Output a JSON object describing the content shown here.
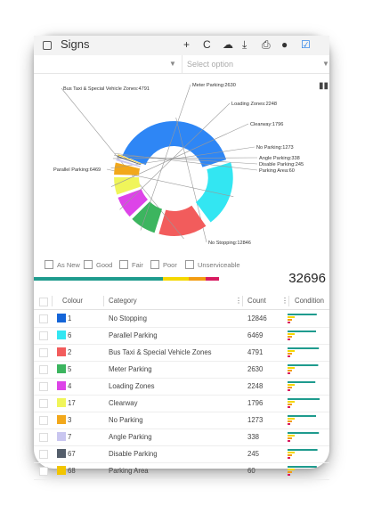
{
  "app": {
    "title": "Signs",
    "toolbar": [
      "plus-icon",
      "refresh-icon",
      "cloud-upload-icon",
      "download-icon",
      "print-icon",
      "circle-icon",
      "checkbox-icon"
    ],
    "toolbar_glyphs": [
      "+",
      "C",
      "☁",
      "⤓",
      "⎙",
      "●",
      "☑"
    ]
  },
  "filters": {
    "first_select_value": "",
    "second_select_placeholder": "Select option"
  },
  "chart_data": {
    "type": "pie",
    "donut": true,
    "categories": [
      "No Stopping",
      "Parallel Parking",
      "Bus Taxi & Special Vehicle Zones",
      "Meter Parking",
      "Loading Zones",
      "Clearway",
      "No Parking",
      "Angle Parking",
      "Disable Parking",
      "Parking Area"
    ],
    "values": [
      12846,
      6469,
      4791,
      2630,
      2248,
      1796,
      1273,
      338,
      245,
      60
    ],
    "labels": [
      "No Stopping:12846",
      "Parallel Parking:6469",
      "Bus Taxi & Special Vehicle Zones:4791",
      "Meter Parking:2630",
      "Loading Zones:2248",
      "Clearway:1796",
      "No Parking:1273",
      "Angle Parking:338",
      "Disable Parking:245",
      "Parking Area:60"
    ],
    "colors": [
      "#2e86f5",
      "#33e6f2",
      "#f25c5c",
      "#3cb55f",
      "#dd44e8",
      "#f0f55a",
      "#f2a81b",
      "#c9c6f0",
      "#545e6b",
      "#f2c500"
    ]
  },
  "conditions": [
    "As New",
    "Good",
    "Fair",
    "Poor",
    "Unserviceable"
  ],
  "total": "32696",
  "progress": {
    "segments": [
      {
        "fraction": 0.6,
        "color": "#1f9b8e"
      },
      {
        "fraction": 0.12,
        "color": "#f5d800"
      },
      {
        "fraction": 0.08,
        "color": "#f39c12"
      },
      {
        "fraction": 0.06,
        "color": "#d81b60"
      }
    ]
  },
  "table": {
    "headers": {
      "colour": "Colour",
      "category": "Category",
      "count": "Count",
      "condition": "Condition"
    },
    "rows": [
      {
        "color": "#1565d8",
        "num": "1",
        "category": "No Stopping",
        "count": "12846"
      },
      {
        "color": "#33e6f2",
        "num": "6",
        "category": "Parallel Parking",
        "count": "6469"
      },
      {
        "color": "#f25c5c",
        "num": "2",
        "category": "Bus Taxi & Special Vehicle Zones",
        "count": "4791"
      },
      {
        "color": "#3cb55f",
        "num": "5",
        "category": "Meter Parking",
        "count": "2630"
      },
      {
        "color": "#dd44e8",
        "num": "4",
        "category": "Loading Zones",
        "count": "2248"
      },
      {
        "color": "#f0f55a",
        "num": "17",
        "category": "Clearway",
        "count": "1796"
      },
      {
        "color": "#f2a81b",
        "num": "3",
        "category": "No Parking",
        "count": "1273"
      },
      {
        "color": "#c9c6f0",
        "num": "7",
        "category": "Angle Parking",
        "count": "338"
      },
      {
        "color": "#545e6b",
        "num": "67",
        "category": "Disable Parking",
        "count": "245"
      },
      {
        "color": "#f2c500",
        "num": "68",
        "category": "Parking Area",
        "count": "60"
      }
    ],
    "condition_levels": [
      0.82,
      0.8,
      0.88,
      0.86,
      0.78,
      0.9,
      0.8,
      0.88,
      0.84,
      0.82
    ]
  }
}
